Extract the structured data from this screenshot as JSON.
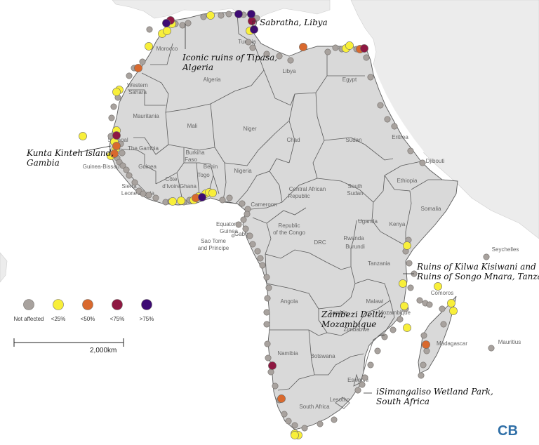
{
  "colors": {
    "ocean": "#ffffff",
    "africa": "#d9d9d9",
    "neighbors": "#ececec",
    "border": "#5a5a5a",
    "not_affected": "#a8a29e",
    "lt25": "#f8ef3a",
    "lt50": "#d9692e",
    "lt75": "#8e1842",
    "gt75": "#3d0a73"
  },
  "country_labels": [
    {
      "id": "morocco",
      "text": "Morocco"
    },
    {
      "id": "algeria",
      "text": "Algeria"
    },
    {
      "id": "tunisia",
      "text": "Tunisia"
    },
    {
      "id": "libya",
      "text": "Libya"
    },
    {
      "id": "egypt",
      "text": "Egypt"
    },
    {
      "id": "western-sahara-1",
      "text": "Western"
    },
    {
      "id": "western-sahara-2",
      "text": "Sahara"
    },
    {
      "id": "mauritania",
      "text": "Mauritania"
    },
    {
      "id": "mali",
      "text": "Mali"
    },
    {
      "id": "niger",
      "text": "Niger"
    },
    {
      "id": "chad",
      "text": "Chad"
    },
    {
      "id": "sudan",
      "text": "Sudan"
    },
    {
      "id": "eritrea",
      "text": "Eritrea"
    },
    {
      "id": "djibouti",
      "text": "Djibouti"
    },
    {
      "id": "senegal",
      "text": "Senegal"
    },
    {
      "id": "the-gambia",
      "text": "The Gambia"
    },
    {
      "id": "guinea-bissau",
      "text": "Guinea-Bissau"
    },
    {
      "id": "guinea",
      "text": "Guinea"
    },
    {
      "id": "sierra-leone-1",
      "text": "Sierra"
    },
    {
      "id": "sierra-leone-2",
      "text": "Leone"
    },
    {
      "id": "liberia",
      "text": "Liberia"
    },
    {
      "id": "cote-divoire-1",
      "text": "Côte"
    },
    {
      "id": "cote-divoire-2",
      "text": "d'Ivoire"
    },
    {
      "id": "burkina-faso-1",
      "text": "Burkina"
    },
    {
      "id": "burkina-faso-2",
      "text": "Faso"
    },
    {
      "id": "ghana",
      "text": "Ghana"
    },
    {
      "id": "benin",
      "text": "Benin"
    },
    {
      "id": "togo",
      "text": "Togo"
    },
    {
      "id": "nigeria",
      "text": "Nigeria"
    },
    {
      "id": "car-1",
      "text": "Central African"
    },
    {
      "id": "car-2",
      "text": "Republic"
    },
    {
      "id": "south-sudan-1",
      "text": "South"
    },
    {
      "id": "south-sudan-2",
      "text": "Sudan"
    },
    {
      "id": "ethiopia",
      "text": "Ethiopia"
    },
    {
      "id": "somalia",
      "text": "Somalia"
    },
    {
      "id": "cameroon",
      "text": "Cameroon"
    },
    {
      "id": "eq-guinea-1",
      "text": "Equatorial"
    },
    {
      "id": "eq-guinea-2",
      "text": "Guinea"
    },
    {
      "id": "gabon",
      "text": "Gabon"
    },
    {
      "id": "roc-1",
      "text": "Republic"
    },
    {
      "id": "roc-2",
      "text": "of the Congo"
    },
    {
      "id": "drc",
      "text": "DRC"
    },
    {
      "id": "uganda",
      "text": "Uganda"
    },
    {
      "id": "kenya",
      "text": "Kenya"
    },
    {
      "id": "rwanda",
      "text": "Rwanda"
    },
    {
      "id": "burundi",
      "text": "Burundi"
    },
    {
      "id": "tanzania",
      "text": "Tanzania"
    },
    {
      "id": "sao-tome-1",
      "text": "Sao Tome"
    },
    {
      "id": "sao-tome-2",
      "text": "and Principe"
    },
    {
      "id": "seychelles",
      "text": "Seychelles"
    },
    {
      "id": "angola",
      "text": "Angola"
    },
    {
      "id": "zambia",
      "text": "Zambia"
    },
    {
      "id": "malawi",
      "text": "Malawi"
    },
    {
      "id": "mozambique",
      "text": "Mozambique"
    },
    {
      "id": "comoros",
      "text": "Comoros"
    },
    {
      "id": "madagascar",
      "text": "Madagascar"
    },
    {
      "id": "mauritius",
      "text": "Mauritius"
    },
    {
      "id": "zimbabwe",
      "text": "Zimbabwe"
    },
    {
      "id": "namibia",
      "text": "Namibia"
    },
    {
      "id": "botswana",
      "text": "Botswana"
    },
    {
      "id": "eswatini",
      "text": "Eswatini"
    },
    {
      "id": "lesotho",
      "text": "Lesotho"
    },
    {
      "id": "south-africa",
      "text": "South Africa"
    }
  ],
  "site_labels": [
    {
      "id": "sabratha",
      "lines": [
        "Sabratha, Libya"
      ]
    },
    {
      "id": "tipasa",
      "lines": [
        "Iconic ruins of Tipasa,",
        "Algeria"
      ]
    },
    {
      "id": "kunta-kinteh",
      "lines": [
        "Kunta Kinteh island,",
        "Gambia"
      ]
    },
    {
      "id": "kilwa",
      "lines": [
        "Ruins of Kilwa Kisiwani and",
        "Ruins of Songo Mnara, Tanzania"
      ]
    },
    {
      "id": "zambezi",
      "lines": [
        "Zambezi Delta,",
        "Mozambique"
      ]
    },
    {
      "id": "isimangaliso",
      "lines": [
        "iSimangaliso Wetland Park,",
        "South Africa"
      ]
    }
  ],
  "legend": {
    "items": [
      {
        "key": "na",
        "label": "Not affected",
        "color": "#a8a29e"
      },
      {
        "key": "lt25",
        "label": "<25%",
        "color": "#f8ef3a"
      },
      {
        "key": "lt50",
        "label": "<50%",
        "color": "#d9692e"
      },
      {
        "key": "lt75",
        "label": "<75%",
        "color": "#8e1842"
      },
      {
        "key": "gt75",
        "label": ">75%",
        "color": "#3d0a73"
      }
    ]
  },
  "scale_bar": {
    "label": "2,000km"
  },
  "logo": {
    "text": "CB"
  },
  "sites": {
    "na": [
      [
        213,
        42
      ],
      [
        250,
        34
      ],
      [
        260,
        36
      ],
      [
        268,
        33
      ],
      [
        290,
        24
      ],
      [
        315,
        22
      ],
      [
        326,
        20
      ],
      [
        347,
        21
      ],
      [
        366,
        26
      ],
      [
        354,
        60
      ],
      [
        360,
        68
      ],
      [
        380,
        77
      ],
      [
        398,
        80
      ],
      [
        414,
        86
      ],
      [
        467,
        74
      ],
      [
        478,
        68
      ],
      [
        487,
        70
      ],
      [
        508,
        70
      ],
      [
        522,
        82
      ],
      [
        528,
        110
      ],
      [
        542,
        150
      ],
      [
        552,
        170
      ],
      [
        562,
        180
      ],
      [
        585,
        215
      ],
      [
        602,
        232
      ],
      [
        203,
        88
      ],
      [
        191,
        97
      ],
      [
        184,
        108
      ],
      [
        168,
        139
      ],
      [
        162,
        152
      ],
      [
        159,
        168
      ],
      [
        158,
        194
      ],
      [
        172,
        205
      ],
      [
        174,
        218
      ],
      [
        167,
        225
      ],
      [
        170,
        231
      ],
      [
        175,
        236
      ],
      [
        180,
        242
      ],
      [
        184,
        250
      ],
      [
        192,
        260
      ],
      [
        198,
        272
      ],
      [
        204,
        276
      ],
      [
        212,
        278
      ],
      [
        222,
        282
      ],
      [
        236,
        288
      ],
      [
        243,
        287
      ],
      [
        262,
        288
      ],
      [
        270,
        285
      ],
      [
        317,
        285
      ],
      [
        327,
        282
      ],
      [
        345,
        290
      ],
      [
        353,
        298
      ],
      [
        352,
        305
      ],
      [
        347,
        313
      ],
      [
        340,
        320
      ],
      [
        350,
        326
      ],
      [
        356,
        336
      ],
      [
        360,
        348
      ],
      [
        367,
        358
      ],
      [
        371,
        368
      ],
      [
        374,
        378
      ],
      [
        380,
        395
      ],
      [
        383,
        410
      ],
      [
        381,
        425
      ],
      [
        380,
        445
      ],
      [
        380,
        462
      ],
      [
        381,
        490
      ],
      [
        382,
        510
      ],
      [
        386,
        530
      ],
      [
        392,
        550
      ],
      [
        398,
        570
      ],
      [
        405,
        590
      ],
      [
        411,
        600
      ],
      [
        420,
        606
      ],
      [
        434,
        610
      ],
      [
        456,
        604
      ],
      [
        476,
        598
      ],
      [
        510,
        556
      ],
      [
        516,
        548
      ],
      [
        520,
        538
      ],
      [
        528,
        520
      ],
      [
        538,
        500
      ],
      [
        548,
        480
      ],
      [
        560,
        470
      ],
      [
        570,
        455
      ],
      [
        578,
        440
      ],
      [
        585,
        410
      ],
      [
        590,
        390
      ],
      [
        583,
        375
      ],
      [
        578,
        358
      ],
      [
        582,
        342
      ],
      [
        598,
        428
      ],
      [
        606,
        432
      ],
      [
        612,
        434
      ],
      [
        604,
        478
      ],
      [
        608,
        500
      ],
      [
        603,
        520
      ],
      [
        600,
        535
      ],
      [
        630,
        440
      ],
      [
        632,
        462
      ],
      [
        693,
        366
      ],
      [
        700,
        496
      ],
      [
        236,
        32
      ]
    ],
    "lt25": [
      [
        118,
        194
      ],
      [
        166,
        186
      ],
      [
        163,
        202
      ],
      [
        165,
        212
      ],
      [
        158,
        222
      ],
      [
        170,
        128
      ],
      [
        166,
        131
      ],
      [
        212,
        66
      ],
      [
        231,
        48
      ],
      [
        238,
        44
      ],
      [
        245,
        34
      ],
      [
        300,
        22
      ],
      [
        356,
        44
      ],
      [
        493,
        69
      ],
      [
        498,
        65
      ],
      [
        246,
        287
      ],
      [
        258,
        286
      ],
      [
        276,
        285
      ],
      [
        283,
        280
      ],
      [
        293,
        276
      ],
      [
        298,
        274
      ],
      [
        303,
        275
      ],
      [
        580,
        350
      ],
      [
        574,
        404
      ],
      [
        624,
        408
      ],
      [
        576,
        436
      ],
      [
        580,
        467
      ],
      [
        643,
        432
      ],
      [
        646,
        443
      ],
      [
        420,
        618
      ],
      [
        425,
        620
      ],
      [
        420,
        620
      ]
    ],
    "lt50": [
      [
        197,
        97
      ],
      [
        166,
        208
      ],
      [
        163,
        219
      ],
      [
        432,
        67
      ],
      [
        513,
        70
      ],
      [
        279,
        282
      ],
      [
        607,
        491
      ],
      [
        401,
        568
      ]
    ],
    "lt75": [
      [
        243,
        29
      ],
      [
        166,
        193
      ],
      [
        519,
        69
      ],
      [
        359,
        30
      ],
      [
        388,
        521
      ]
    ],
    "gt75": [
      [
        237,
        33
      ],
      [
        340,
        20
      ],
      [
        358,
        20
      ],
      [
        362,
        42
      ],
      [
        288,
        281
      ]
    ]
  }
}
